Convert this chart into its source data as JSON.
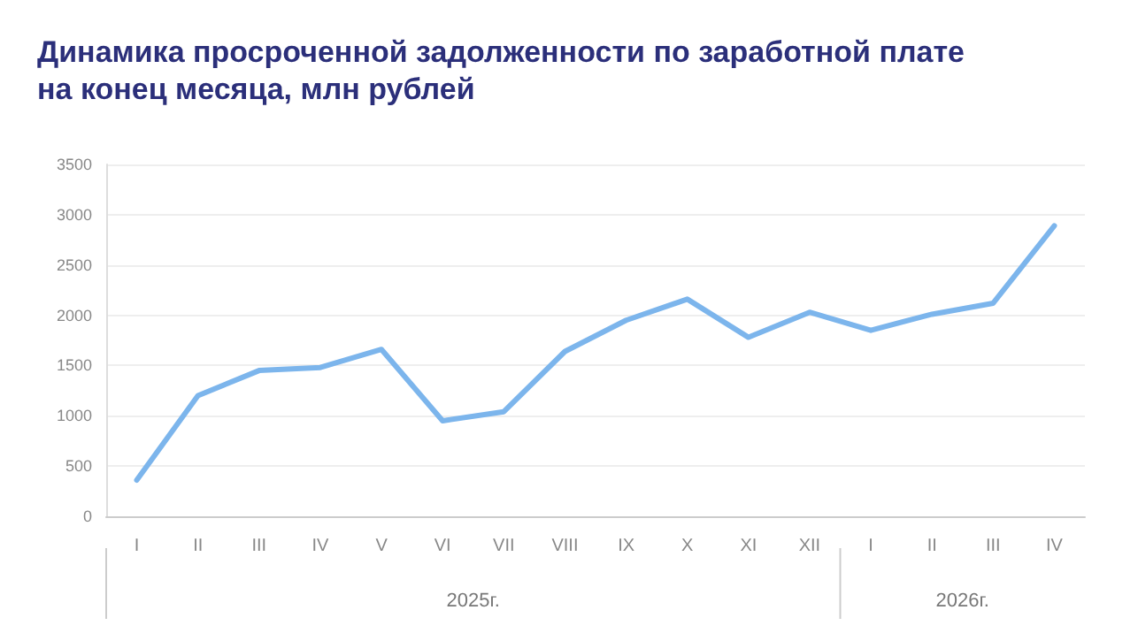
{
  "chart_data": {
    "type": "line",
    "title": "Динамика просроченной задолженности по заработной плате\nна конец месяца, млн рублей",
    "categories": [
      "I",
      "II",
      "III",
      "IV",
      "V",
      "VI",
      "VII",
      "VIII",
      "IX",
      "X",
      "XI",
      "XII",
      "I",
      "II",
      "III",
      "IV"
    ],
    "series": [
      {
        "color": "#7cb5ec",
        "values": [
          360,
          1200,
          1450,
          1480,
          1660,
          950,
          1040,
          1640,
          1950,
          2160,
          1780,
          2030,
          1850,
          2010,
          2120,
          2890
        ]
      }
    ],
    "ylim": [
      0,
      3500
    ],
    "yticks": [
      0,
      500,
      1000,
      1500,
      2000,
      2500,
      3000,
      3500
    ],
    "grid": "y",
    "marker": "none",
    "line_style": "solid",
    "annotations": [
      "2025г.",
      "2026г."
    ]
  }
}
